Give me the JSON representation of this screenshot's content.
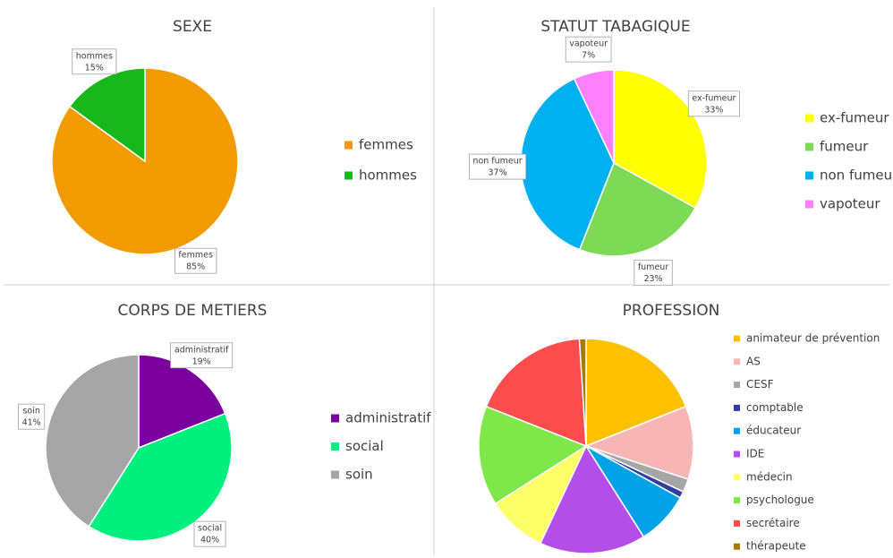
{
  "chart_data": [
    {
      "type": "pie",
      "title": "SEXE",
      "categories": [
        "femmes",
        "hommes"
      ],
      "values": [
        85,
        15
      ],
      "value_labels": [
        "85%",
        "15%"
      ],
      "colors": [
        "#f29b00",
        "#17b81b"
      ],
      "legend": "right"
    },
    {
      "type": "pie",
      "title": "STATUT TABAGIQUE",
      "categories": [
        "ex-fumeur",
        "fumeur",
        "non fumeur",
        "vapoteur"
      ],
      "values": [
        33,
        23,
        37,
        7
      ],
      "value_labels": [
        "33%",
        "23%",
        "37%",
        "7%"
      ],
      "colors": [
        "#ffff00",
        "#7ed957",
        "#00b0f0",
        "#ff80ff"
      ],
      "legend": "right"
    },
    {
      "type": "pie",
      "title": "CORPS DE METIERS",
      "categories": [
        "administratif",
        "social",
        "soin"
      ],
      "values": [
        19,
        40,
        41
      ],
      "value_labels": [
        "19%",
        "40%",
        "41%"
      ],
      "colors": [
        "#7b00a0",
        "#00f080",
        "#a6a6a6"
      ],
      "legend": "right"
    },
    {
      "type": "pie",
      "title": "PROFESSION",
      "categories": [
        "animateur de prévention",
        "AS",
        "CESF",
        "comptable",
        "éducateur",
        "IDE",
        "médecin",
        "psychologue",
        "secrétaire",
        "thérapeute"
      ],
      "values": [
        19,
        11,
        2,
        1,
        8,
        16,
        9,
        15,
        18,
        1
      ],
      "colors": [
        "#ffc000",
        "#f8b5b5",
        "#a6a6a6",
        "#2f3f9f",
        "#00a3e8",
        "#b44ee8",
        "#ffff66",
        "#7ee84a",
        "#ff4d4d",
        "#a67c00"
      ],
      "legend": "right"
    }
  ]
}
